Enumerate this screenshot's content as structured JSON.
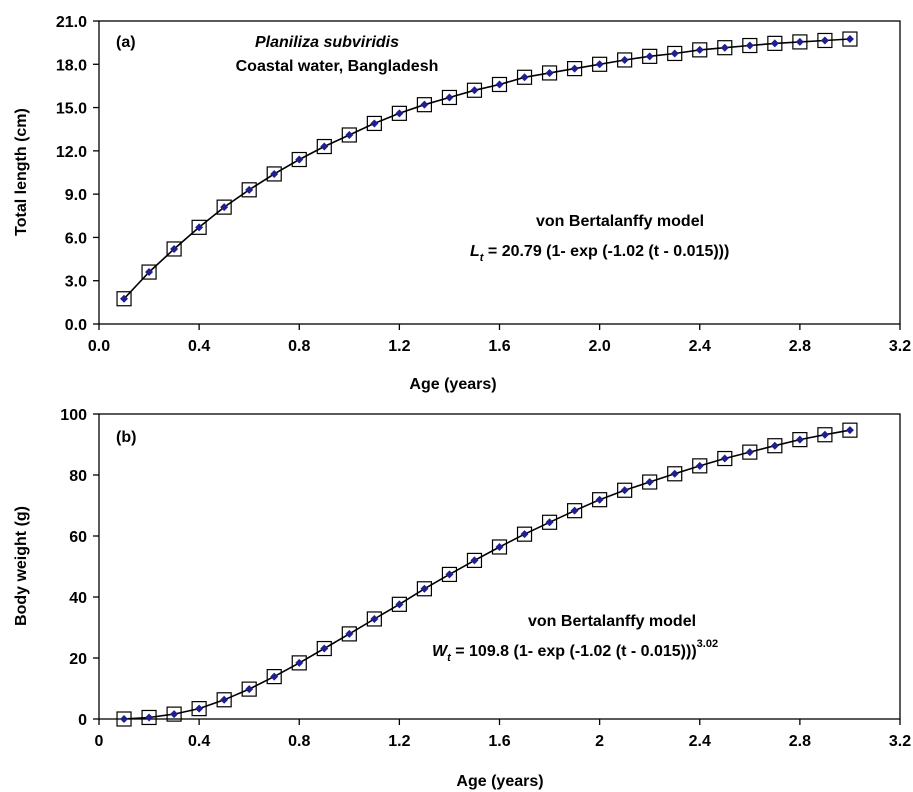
{
  "chart_data": [
    {
      "type": "line",
      "panel_label": "(a)",
      "header_species": "Planiliza subviridis",
      "header_location": "Coastal water, Bangladesh",
      "xlabel": "Age (years)",
      "ylabel": "Total length (cm)",
      "xlim": [
        0.0,
        3.2
      ],
      "ylim": [
        0.0,
        21.0
      ],
      "x_ticks": [
        "0.0",
        "0.4",
        "0.8",
        "1.2",
        "1.6",
        "2.0",
        "2.4",
        "2.8",
        "3.2"
      ],
      "y_ticks": [
        "0.0",
        "3.0",
        "6.0",
        "9.0",
        "12.0",
        "15.0",
        "18.0",
        "21.0"
      ],
      "grid": false,
      "legend": "none",
      "annotation_title": "von Bertalanffy model",
      "equation": {
        "var": "L",
        "sub": "t",
        "rest": " = 20.79 (1- exp (-1.02 (t - 0.015)))",
        "sup": ""
      },
      "series": [
        {
          "marker": "open-square",
          "x": [
            0.1,
            0.2,
            0.3,
            0.4,
            0.5,
            0.6,
            0.7,
            0.8,
            0.9,
            1.0,
            1.1,
            1.2,
            1.3,
            1.4,
            1.5,
            1.6,
            1.7,
            1.8,
            1.9,
            2.0,
            2.1,
            2.2,
            2.3,
            2.4,
            2.5,
            2.6,
            2.7,
            2.8,
            2.9,
            3.0
          ],
          "y": [
            1.75,
            3.6,
            5.2,
            6.7,
            8.1,
            9.3,
            10.4,
            11.4,
            12.3,
            13.1,
            13.9,
            14.6,
            15.2,
            15.7,
            16.2,
            16.6,
            17.1,
            17.4,
            17.7,
            18.0,
            18.3,
            18.55,
            18.75,
            19.0,
            19.15,
            19.3,
            19.45,
            19.55,
            19.65,
            19.75
          ]
        },
        {
          "marker": "filled-diamond",
          "x": [
            0.1,
            0.2,
            0.3,
            0.4,
            0.5,
            0.6,
            0.7,
            0.8,
            0.9,
            1.0,
            1.1,
            1.2,
            1.3,
            1.4,
            1.5,
            1.6,
            1.7,
            1.8,
            1.9,
            2.0,
            2.1,
            2.2,
            2.3,
            2.4,
            2.5,
            2.6,
            2.7,
            2.8,
            2.9,
            3.0
          ],
          "y": [
            1.75,
            3.6,
            5.2,
            6.7,
            8.1,
            9.3,
            10.4,
            11.4,
            12.3,
            13.1,
            13.9,
            14.6,
            15.2,
            15.7,
            16.2,
            16.6,
            17.1,
            17.4,
            17.7,
            18.0,
            18.3,
            18.55,
            18.75,
            19.0,
            19.15,
            19.3,
            19.45,
            19.55,
            19.65,
            19.75
          ]
        }
      ]
    },
    {
      "type": "line",
      "panel_label": "(b)",
      "xlabel": "Age (years)",
      "ylabel": "Body weight (g)",
      "xlim": [
        0,
        3.2
      ],
      "ylim": [
        0,
        100
      ],
      "x_ticks": [
        "0",
        "0.4",
        "0.8",
        "1.2",
        "1.6",
        "2",
        "2.4",
        "2.8",
        "3.2"
      ],
      "y_ticks": [
        "0",
        "20",
        "40",
        "60",
        "80",
        "100"
      ],
      "grid": false,
      "legend": "none",
      "annotation_title": "von Bertalanffy model",
      "equation": {
        "var": "W",
        "sub": "t",
        "rest": " = 109.8 (1- exp (-1.02 (t - 0.015)))",
        "sup": "3.02"
      },
      "series": [
        {
          "marker": "open-square",
          "x": [
            0.1,
            0.2,
            0.3,
            0.4,
            0.5,
            0.6,
            0.7,
            0.8,
            0.9,
            1.0,
            1.1,
            1.2,
            1.3,
            1.4,
            1.5,
            1.6,
            1.7,
            1.8,
            1.9,
            2.0,
            2.1,
            2.2,
            2.3,
            2.4,
            2.5,
            2.6,
            2.7,
            2.8,
            2.9,
            3.0
          ],
          "y": [
            0.0,
            0.5,
            1.6,
            3.4,
            6.3,
            9.8,
            13.9,
            18.4,
            23.1,
            27.9,
            32.8,
            37.6,
            42.7,
            47.4,
            52.0,
            56.4,
            60.6,
            64.5,
            68.3,
            71.9,
            75.0,
            77.7,
            80.4,
            83.0,
            85.4,
            87.5,
            89.6,
            91.6,
            93.2,
            94.7
          ]
        },
        {
          "marker": "filled-diamond",
          "x": [
            0.1,
            0.2,
            0.3,
            0.4,
            0.5,
            0.6,
            0.7,
            0.8,
            0.9,
            1.0,
            1.1,
            1.2,
            1.3,
            1.4,
            1.5,
            1.6,
            1.7,
            1.8,
            1.9,
            2.0,
            2.1,
            2.2,
            2.3,
            2.4,
            2.5,
            2.6,
            2.7,
            2.8,
            2.9,
            3.0
          ],
          "y": [
            0.0,
            0.5,
            1.6,
            3.4,
            6.3,
            9.8,
            13.9,
            18.4,
            23.1,
            27.9,
            32.8,
            37.6,
            42.7,
            47.4,
            52.0,
            56.4,
            60.6,
            64.5,
            68.3,
            71.9,
            75.0,
            77.7,
            80.4,
            83.0,
            85.4,
            87.5,
            89.6,
            91.6,
            93.2,
            94.7
          ]
        }
      ]
    }
  ],
  "colors": {
    "axis": "#000000",
    "curve": "#000000",
    "square_marker": "#000000",
    "diamond_marker": "#1f1f8f"
  }
}
